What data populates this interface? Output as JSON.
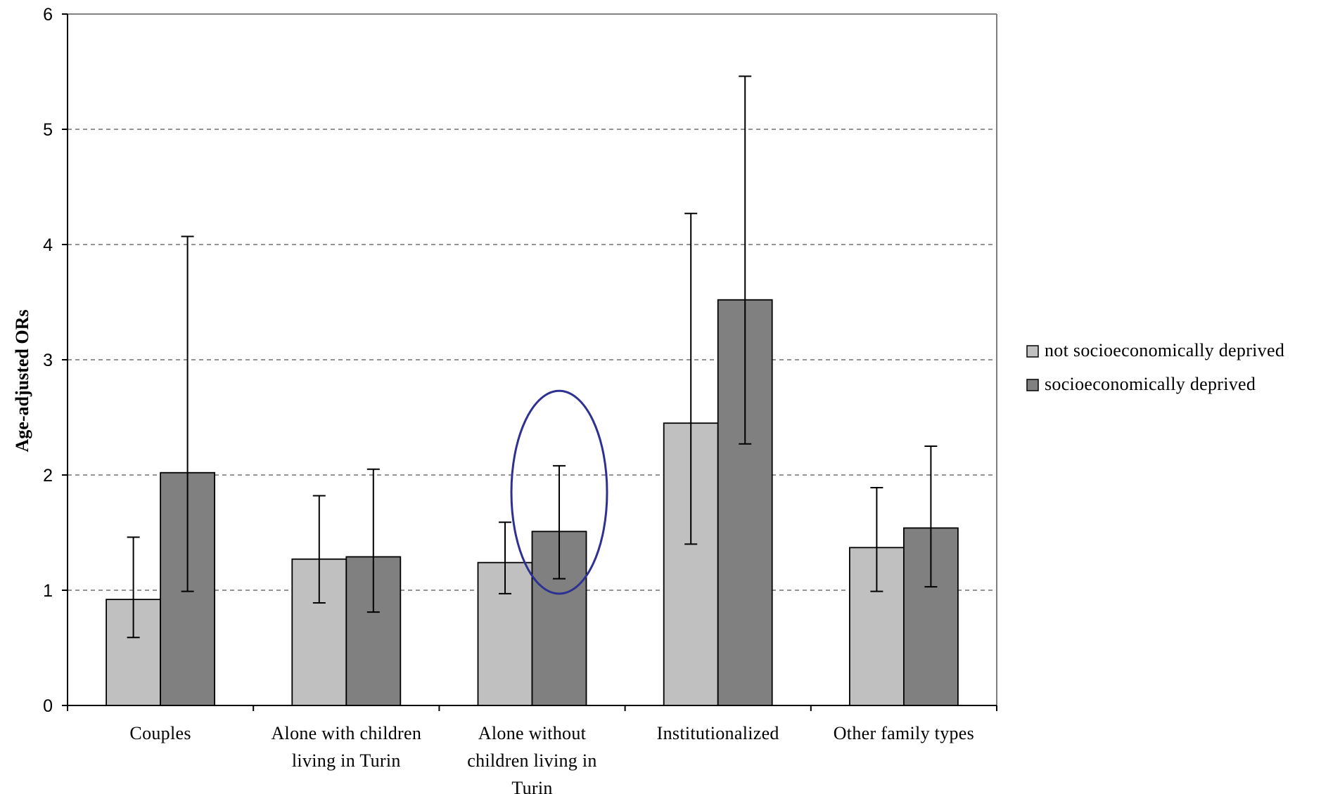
{
  "chart_data": {
    "type": "bar",
    "title": "",
    "xlabel": "",
    "ylabel": "Age-adjusted ORs",
    "ylim": [
      0,
      6
    ],
    "yticks": [
      0,
      1,
      2,
      3,
      4,
      5,
      6
    ],
    "grid": "horizontal-dashed",
    "legend_position": "right",
    "categories": [
      [
        "Couples"
      ],
      [
        "Alone with children",
        "living in Turin"
      ],
      [
        "Alone without",
        "children living in",
        "Turin"
      ],
      [
        "Institutionalized"
      ],
      [
        "Other family types"
      ]
    ],
    "series": [
      {
        "name": "not socioeconomically deprived",
        "color": "#c0c0c0",
        "values": [
          0.92,
          1.27,
          1.24,
          2.45,
          1.37
        ],
        "ci_low": [
          0.59,
          0.89,
          0.97,
          1.4,
          0.99
        ],
        "ci_high": [
          1.46,
          1.82,
          1.59,
          4.27,
          1.89
        ]
      },
      {
        "name": "socioeconomically deprived",
        "color": "#808080",
        "values": [
          2.02,
          1.29,
          1.51,
          3.52,
          1.54
        ],
        "ci_low": [
          0.99,
          0.81,
          1.1,
          2.27,
          1.03
        ],
        "ci_high": [
          4.07,
          2.05,
          2.08,
          5.46,
          2.25
        ]
      }
    ],
    "annotations": [
      {
        "type": "ellipse",
        "category_index": 2,
        "series_index": 1,
        "color": "#2e3192",
        "y_center": 1.85,
        "y_half_height": 0.88
      }
    ]
  }
}
